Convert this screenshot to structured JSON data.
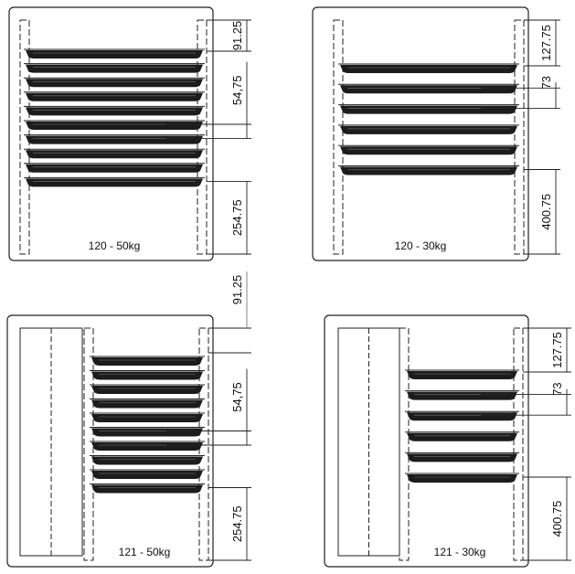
{
  "panels": [
    {
      "label": "120 - 50kg",
      "dimensions": [
        "91.25",
        "54,75",
        "254.75"
      ]
    },
    {
      "label": "120 - 30kg",
      "dimensions": [
        "127.75",
        "73",
        "400.75"
      ]
    },
    {
      "label": "121 - 50kg",
      "dimensions": [
        "91.25",
        "54,75",
        "254.75"
      ]
    },
    {
      "label": "121 - 30kg",
      "dimensions": [
        "127.75",
        "73",
        "400.75"
      ]
    }
  ]
}
